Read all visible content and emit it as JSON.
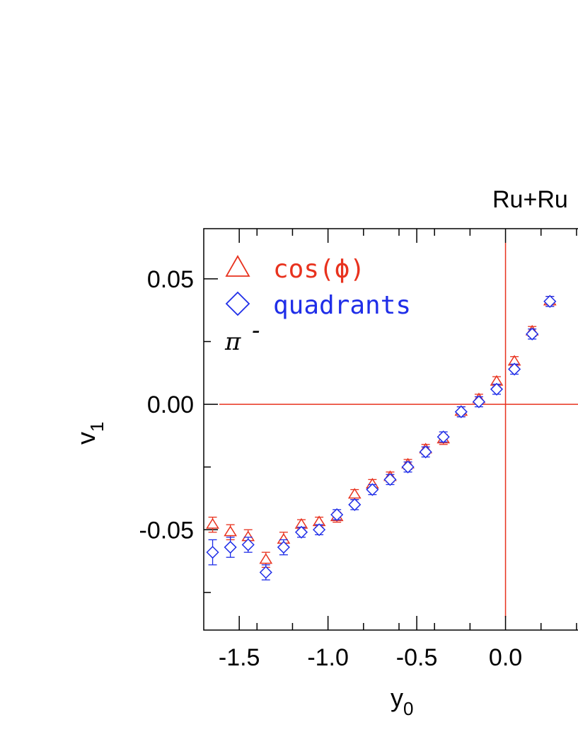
{
  "chart_data": {
    "type": "scatter",
    "title": "Ru+Ru",
    "xlabel": "y",
    "xlabel_sub": "0",
    "ylabel": "v",
    "ylabel_sub": "1",
    "xlim": [
      -1.7,
      0.5
    ],
    "ylim": [
      -0.09,
      0.07
    ],
    "x_ticks": [
      -1.5,
      -1.0,
      -0.5,
      0.0
    ],
    "x_tick_labels": [
      "-1.5",
      "-1.0",
      "-0.5",
      "0.0"
    ],
    "y_ticks": [
      0.05,
      0.0,
      -0.05
    ],
    "y_tick_labels": [
      "0.05",
      "0.00",
      "-0.05"
    ],
    "grid": false,
    "legend_position": "top-left",
    "particle_label": "π",
    "particle_charge": "-",
    "reference_lines": {
      "x": 0.0,
      "y": 0.0,
      "color": "#e8321e"
    },
    "series": [
      {
        "name": "cos(ϕ)",
        "marker": "triangle",
        "color": "#e8321e",
        "x": [
          -1.65,
          -1.55,
          -1.45,
          -1.35,
          -1.25,
          -1.15,
          -1.05,
          -0.95,
          -0.85,
          -0.75,
          -0.65,
          -0.55,
          -0.45,
          -0.35,
          -0.25,
          -0.15,
          -0.05,
          0.05,
          0.15,
          0.25
        ],
        "y": [
          -0.048,
          -0.051,
          -0.053,
          -0.062,
          -0.054,
          -0.048,
          -0.047,
          -0.045,
          -0.036,
          -0.032,
          -0.029,
          -0.024,
          -0.018,
          -0.014,
          -0.003,
          0.002,
          0.009,
          0.017,
          0.029,
          0.041
        ],
        "err": [
          0.003,
          0.003,
          0.003,
          0.003,
          0.003,
          0.002,
          0.002,
          0.002,
          0.002,
          0.002,
          0.002,
          0.002,
          0.002,
          0.002,
          0.002,
          0.002,
          0.002,
          0.002,
          0.002,
          0.002
        ]
      },
      {
        "name": "quadrants",
        "marker": "diamond",
        "color": "#1f2ee8",
        "x": [
          -1.65,
          -1.55,
          -1.45,
          -1.35,
          -1.25,
          -1.15,
          -1.05,
          -0.95,
          -0.85,
          -0.75,
          -0.65,
          -0.55,
          -0.45,
          -0.35,
          -0.25,
          -0.15,
          -0.05,
          0.05,
          0.15,
          0.25
        ],
        "y": [
          -0.059,
          -0.057,
          -0.056,
          -0.067,
          -0.057,
          -0.051,
          -0.05,
          -0.044,
          -0.04,
          -0.034,
          -0.03,
          -0.025,
          -0.019,
          -0.013,
          -0.003,
          0.001,
          0.006,
          0.014,
          0.028,
          0.041
        ],
        "err": [
          0.005,
          0.004,
          0.003,
          0.003,
          0.003,
          0.002,
          0.002,
          0.002,
          0.002,
          0.002,
          0.002,
          0.002,
          0.002,
          0.002,
          0.002,
          0.002,
          0.002,
          0.002,
          0.002,
          0.002
        ]
      }
    ]
  }
}
